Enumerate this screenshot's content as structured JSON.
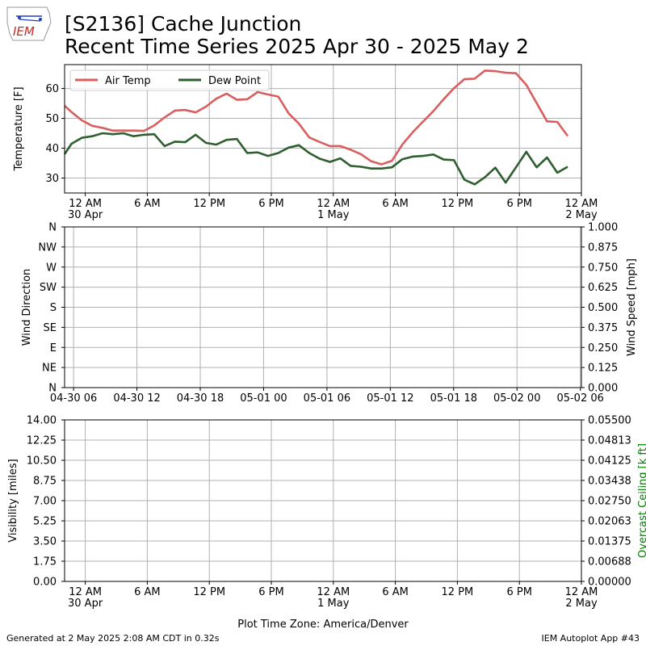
{
  "header": {
    "title_line1": "[S2136] Cache Junction",
    "title_line2": "Recent Time Series 2025 Apr 30 - 2025 May 2",
    "logo_text": "IEM"
  },
  "footer": {
    "generated": "Generated at 2 May 2025 2:08 AM CDT in 0.32s",
    "app": "IEM Autoplot App #43",
    "timezone_label": "Plot Time Zone: America/Denver"
  },
  "colors": {
    "air_temp": "#d95f5f",
    "dew_point": "#2f5f2f",
    "grid": "#b0b0b0",
    "ceiling_label": "#008000"
  },
  "chart_data": [
    {
      "type": "line",
      "ylabel": "Temperature [F]",
      "ylim": [
        25,
        68
      ],
      "yticks": [
        30,
        40,
        50,
        60
      ],
      "xlim_hours": [
        -2,
        48
      ],
      "x_unit": "hours after 2025-04-30 00:00 America/Denver",
      "xticks": [
        {
          "hour": 0,
          "label": "12 AM",
          "sublabel": "30 Apr"
        },
        {
          "hour": 6,
          "label": "6 AM",
          "sublabel": ""
        },
        {
          "hour": 12,
          "label": "12 PM",
          "sublabel": ""
        },
        {
          "hour": 18,
          "label": "6 PM",
          "sublabel": ""
        },
        {
          "hour": 24,
          "label": "12 AM",
          "sublabel": "1 May"
        },
        {
          "hour": 30,
          "label": "6 AM",
          "sublabel": ""
        },
        {
          "hour": 36,
          "label": "12 PM",
          "sublabel": ""
        },
        {
          "hour": 42,
          "label": "6 PM",
          "sublabel": ""
        },
        {
          "hour": 48,
          "label": "12 AM",
          "sublabel": "2 May"
        }
      ],
      "legend_position": "top-left",
      "grid": true,
      "series": [
        {
          "name": "Air Temp",
          "color": "#d95f5f",
          "points": [
            [
              -2,
              54.2
            ],
            [
              -1.33,
              52.1
            ],
            [
              -0.33,
              49.3
            ],
            [
              0.67,
              47.5
            ],
            [
              1.67,
              46.8
            ],
            [
              2.67,
              45.9
            ],
            [
              3.67,
              45.9
            ],
            [
              4.67,
              45.9
            ],
            [
              5.67,
              45.8
            ],
            [
              6.67,
              47.6
            ],
            [
              7.67,
              50.3
            ],
            [
              8.67,
              52.6
            ],
            [
              9.67,
              52.8
            ],
            [
              10.67,
              52.0
            ],
            [
              11.67,
              53.9
            ],
            [
              12.67,
              56.6
            ],
            [
              13.67,
              58.3
            ],
            [
              14.67,
              56.2
            ],
            [
              15.67,
              56.4
            ],
            [
              16.67,
              58.8
            ],
            [
              17.67,
              58.0
            ],
            [
              18.67,
              57.3
            ],
            [
              19.67,
              51.7
            ],
            [
              20.67,
              48.2
            ],
            [
              21.67,
              43.6
            ],
            [
              22.67,
              42.1
            ],
            [
              23.67,
              40.7
            ],
            [
              24.67,
              40.7
            ],
            [
              25.67,
              39.5
            ],
            [
              26.67,
              38.0
            ],
            [
              27.67,
              35.6
            ],
            [
              28.67,
              34.6
            ],
            [
              29.67,
              35.8
            ],
            [
              30.67,
              41.2
            ],
            [
              31.67,
              45.3
            ],
            [
              32.67,
              48.9
            ],
            [
              33.67,
              52.4
            ],
            [
              34.67,
              56.4
            ],
            [
              35.67,
              60.1
            ],
            [
              36.67,
              63.1
            ],
            [
              37.67,
              63.3
            ],
            [
              38.67,
              66.0
            ],
            [
              39.67,
              65.8
            ],
            [
              40.67,
              65.3
            ],
            [
              41.67,
              65.1
            ],
            [
              42.67,
              61.2
            ],
            [
              43.67,
              55.1
            ],
            [
              44.67,
              49.0
            ],
            [
              45.67,
              48.8
            ],
            [
              46.67,
              44.1
            ]
          ]
        },
        {
          "name": "Dew Point",
          "color": "#2f5f2f",
          "points": [
            [
              -2,
              38.0
            ],
            [
              -1.33,
              41.5
            ],
            [
              -0.33,
              43.5
            ],
            [
              0.67,
              44.0
            ],
            [
              1.67,
              45.0
            ],
            [
              2.67,
              44.7
            ],
            [
              3.67,
              45.0
            ],
            [
              4.67,
              44.0
            ],
            [
              5.67,
              44.5
            ],
            [
              6.67,
              44.7
            ],
            [
              7.67,
              40.7
            ],
            [
              8.67,
              42.2
            ],
            [
              9.67,
              42.0
            ],
            [
              10.67,
              44.5
            ],
            [
              11.67,
              41.8
            ],
            [
              12.67,
              41.2
            ],
            [
              13.67,
              42.8
            ],
            [
              14.67,
              43.1
            ],
            [
              15.67,
              38.4
            ],
            [
              16.67,
              38.6
            ],
            [
              17.67,
              37.4
            ],
            [
              18.67,
              38.4
            ],
            [
              19.67,
              40.2
            ],
            [
              20.67,
              41.0
            ],
            [
              21.67,
              38.4
            ],
            [
              22.67,
              36.5
            ],
            [
              23.67,
              35.4
            ],
            [
              24.67,
              36.6
            ],
            [
              25.67,
              34.1
            ],
            [
              26.67,
              33.8
            ],
            [
              27.67,
              33.2
            ],
            [
              28.67,
              33.2
            ],
            [
              29.67,
              33.6
            ],
            [
              30.67,
              36.3
            ],
            [
              31.67,
              37.2
            ],
            [
              32.67,
              37.4
            ],
            [
              33.67,
              37.9
            ],
            [
              34.67,
              36.2
            ],
            [
              35.67,
              36.0
            ],
            [
              36.67,
              29.5
            ],
            [
              37.67,
              27.9
            ],
            [
              38.67,
              30.3
            ],
            [
              39.67,
              33.5
            ],
            [
              40.67,
              28.5
            ],
            [
              41.67,
              33.6
            ],
            [
              42.67,
              38.8
            ],
            [
              43.67,
              33.6
            ],
            [
              44.67,
              36.9
            ],
            [
              45.67,
              31.8
            ],
            [
              46.67,
              33.8
            ]
          ]
        }
      ]
    },
    {
      "type": "scatter",
      "ylabel": "Wind Direction",
      "y2label": "Wind Speed [mph]",
      "yticks_left": [
        "N",
        "NE",
        "E",
        "SE",
        "S",
        "SW",
        "W",
        "NW",
        "N"
      ],
      "yticks_right": [
        "0.000",
        "0.125",
        "0.250",
        "0.375",
        "0.500",
        "0.625",
        "0.750",
        "0.875",
        "1.000"
      ],
      "ylim": [
        0,
        1
      ],
      "xticks": [
        {
          "hour": 6,
          "label": "04-30 06"
        },
        {
          "hour": 12,
          "label": "04-30 12"
        },
        {
          "hour": 18,
          "label": "04-30 18"
        },
        {
          "hour": 24,
          "label": "05-01 00"
        },
        {
          "hour": 30,
          "label": "05-01 06"
        },
        {
          "hour": 36,
          "label": "05-01 12"
        },
        {
          "hour": 42,
          "label": "05-01 18"
        },
        {
          "hour": 48,
          "label": "05-02 00"
        },
        {
          "hour": 54,
          "label": "05-02 06"
        }
      ],
      "xlim_hours": [
        5.15,
        54.1
      ],
      "grid": true,
      "series": []
    },
    {
      "type": "line",
      "ylabel": "Visibility [miles]",
      "y2label": "Overcast Ceiling [k ft]",
      "ylim": [
        0,
        14
      ],
      "yticks_left": [
        "0.00",
        "1.75",
        "3.50",
        "5.25",
        "7.00",
        "8.75",
        "10.50",
        "12.25",
        "14.00"
      ],
      "yticks_right": [
        "0.00000",
        "0.00688",
        "0.01375",
        "0.02063",
        "0.02750",
        "0.03438",
        "0.04125",
        "0.04813",
        "0.05500"
      ],
      "y2lim": [
        0,
        0.055
      ],
      "xlabel": "Plot Time Zone: America/Denver",
      "xlim_hours": [
        -2,
        48
      ],
      "xticks": [
        {
          "hour": 0,
          "label": "12 AM",
          "sublabel": "30 Apr"
        },
        {
          "hour": 6,
          "label": "6 AM",
          "sublabel": ""
        },
        {
          "hour": 12,
          "label": "12 PM",
          "sublabel": ""
        },
        {
          "hour": 18,
          "label": "6 PM",
          "sublabel": ""
        },
        {
          "hour": 24,
          "label": "12 AM",
          "sublabel": "1 May"
        },
        {
          "hour": 30,
          "label": "6 AM",
          "sublabel": ""
        },
        {
          "hour": 36,
          "label": "12 PM",
          "sublabel": ""
        },
        {
          "hour": 42,
          "label": "6 PM",
          "sublabel": ""
        },
        {
          "hour": 48,
          "label": "12 AM",
          "sublabel": "2 May"
        }
      ],
      "grid": true,
      "series": []
    }
  ]
}
